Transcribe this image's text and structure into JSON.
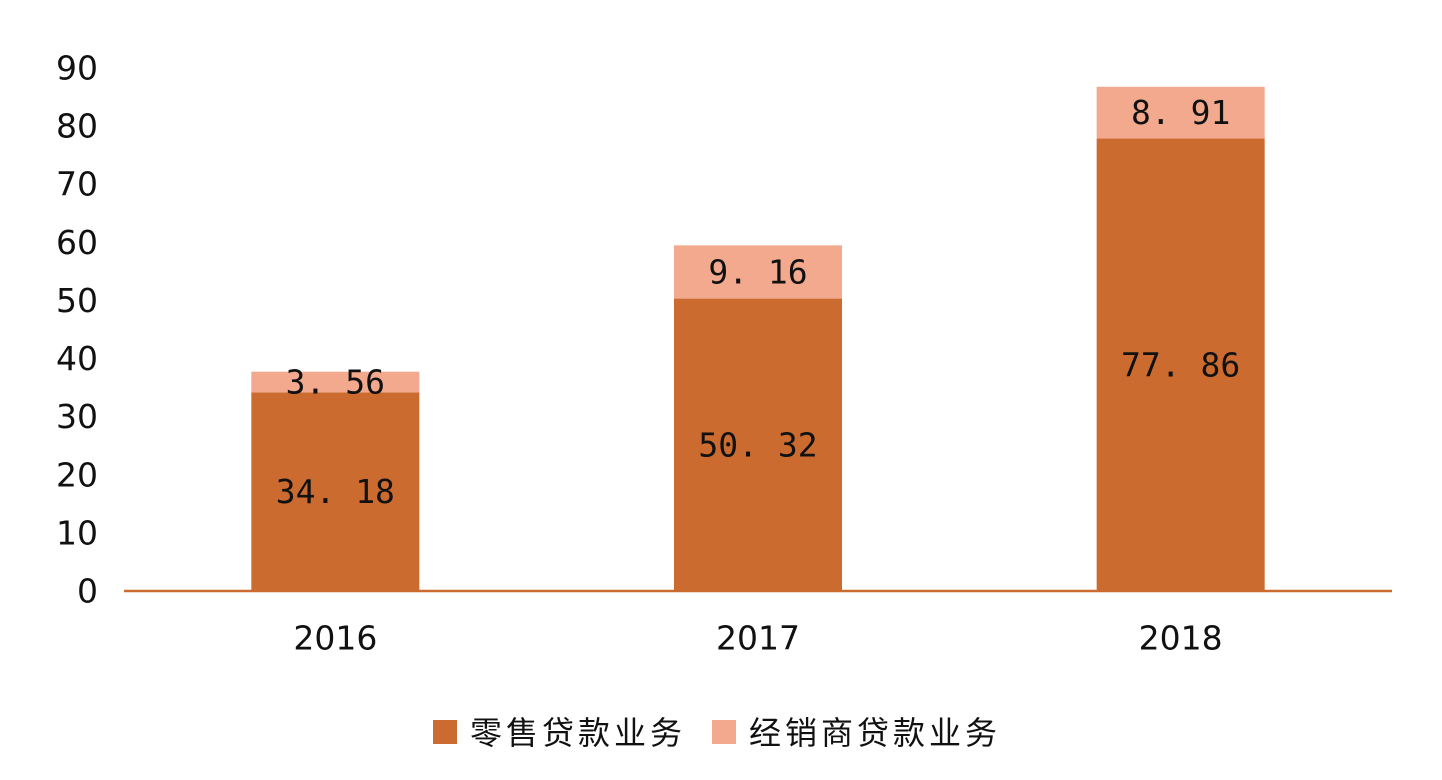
{
  "chart_data": {
    "type": "bar",
    "stacked": true,
    "categories": [
      "2016",
      "2017",
      "2018"
    ],
    "series": [
      {
        "name": "零售贷款业务",
        "values": [
          34.18,
          50.32,
          77.86
        ],
        "value_labels": [
          "34. 18",
          "50. 32",
          "77. 86"
        ],
        "color": "#CC6B2F"
      },
      {
        "name": "经销商贷款业务",
        "values": [
          3.56,
          9.16,
          8.91
        ],
        "value_labels": [
          "3. 56",
          "9. 16",
          "8. 91"
        ],
        "color": "#F2A98E"
      }
    ],
    "title": "",
    "xlabel": "",
    "ylabel": "",
    "ylim": [
      0,
      90
    ],
    "yticks": [
      "0",
      "10",
      "20",
      "30",
      "40",
      "50",
      "60",
      "70",
      "80",
      "90"
    ],
    "grid": false,
    "legend": "bottom-center",
    "axis_color": "#CC6B2F"
  }
}
